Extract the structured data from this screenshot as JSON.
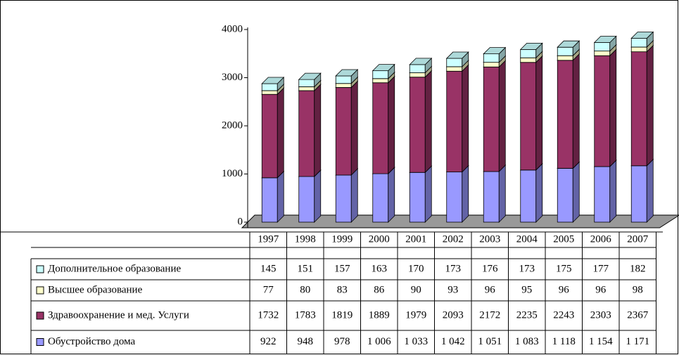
{
  "chart_data": {
    "type": "bar",
    "stacked": true,
    "categories": [
      "1997",
      "1998",
      "1999",
      "2000",
      "2001",
      "2002",
      "2003",
      "2004",
      "2005",
      "2006",
      "2007"
    ],
    "series": [
      {
        "name": "Дополнительное образование",
        "color": "#ccffff",
        "values": [
          145,
          151,
          157,
          163,
          170,
          173,
          176,
          173,
          175,
          177,
          182
        ]
      },
      {
        "name": "Высшее образование",
        "color": "#ffffcc",
        "values": [
          77,
          80,
          83,
          86,
          90,
          93,
          96,
          95,
          96,
          96,
          98
        ]
      },
      {
        "name": "Здравоохранение и мед. Услуги",
        "color": "#993366",
        "values": [
          1732,
          1783,
          1819,
          1889,
          1979,
          2093,
          2172,
          2235,
          2243,
          2303,
          2367
        ]
      },
      {
        "name": "Обустройство дома",
        "color": "#9999ff",
        "values": [
          922,
          948,
          978,
          1006,
          1033,
          1042,
          1051,
          1083,
          1118,
          1154,
          1171
        ],
        "value_labels": [
          "922",
          "948",
          "978",
          "1 006",
          "1 033",
          "1 042",
          "1 051",
          "1 083",
          "1 118",
          "1 154",
          "1 171"
        ]
      }
    ],
    "ylim": [
      0,
      4000
    ],
    "yticks": [
      0,
      1000,
      2000,
      3000,
      4000
    ],
    "grid": false
  }
}
